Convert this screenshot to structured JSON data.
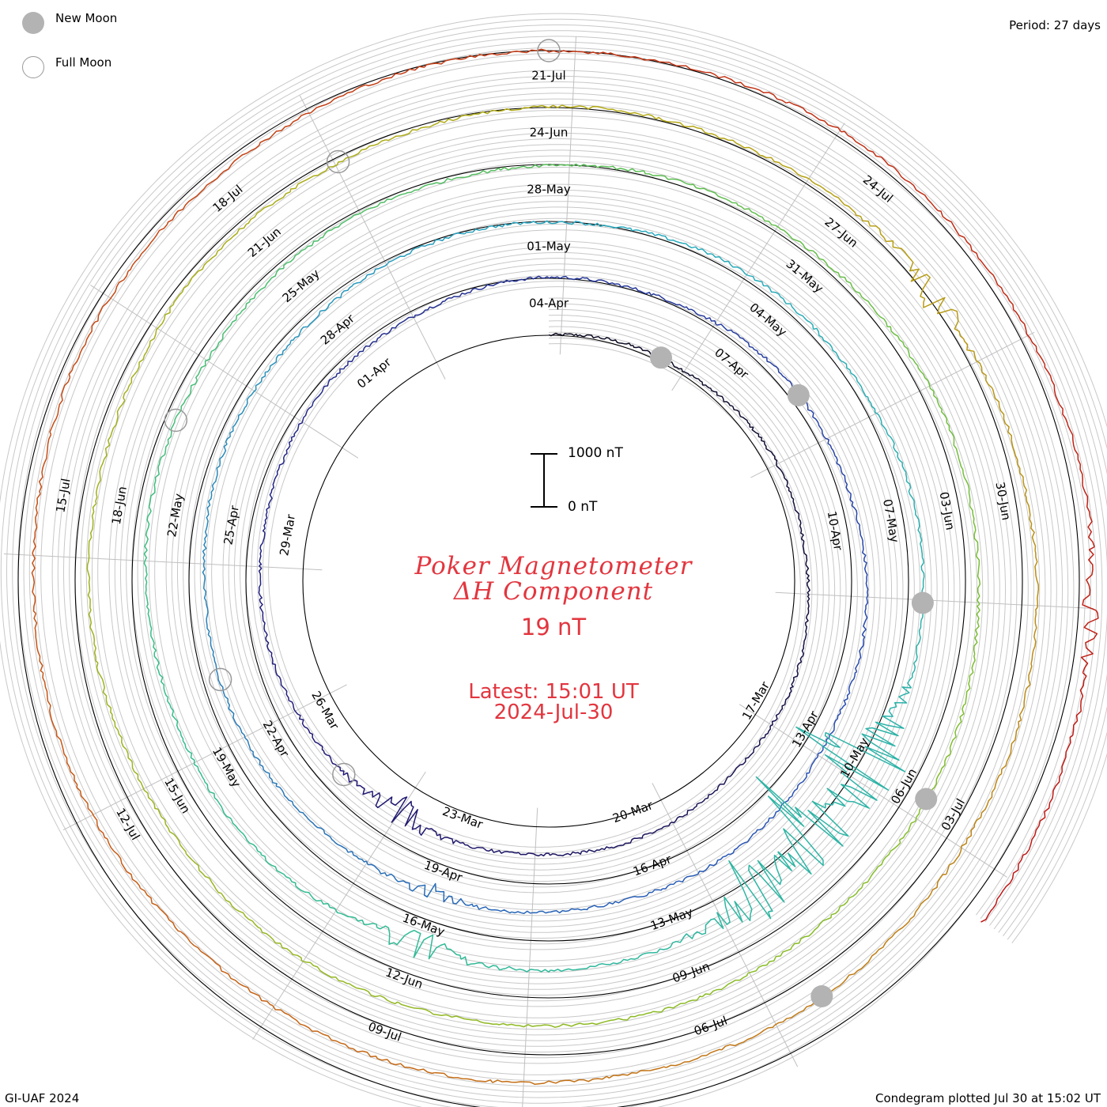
{
  "header": {
    "period": "Period: 27 days",
    "credit": "GI-UAF 2024",
    "plotted": "Condegram plotted Jul 30 at 15:02 UT"
  },
  "legend": {
    "new_moon": "New Moon",
    "full_moon": "Full Moon"
  },
  "center": {
    "title_line1": "Poker Magnetometer",
    "title_line2": "ΔH Component",
    "value": "19 nT",
    "latest_time": "Latest: 15:01 UT",
    "latest_date": "2024-Jul-30"
  },
  "scale": {
    "top_label": "1000 nT",
    "bottom_label": "0 nT"
  },
  "colors": {
    "title": "#e2363f",
    "grid": "#c8c8c8",
    "baseline": "#000000",
    "new_moon": "#b3b3b3",
    "full_moon": "#999999"
  },
  "chart_data": {
    "type": "line",
    "title": "Poker Magnetometer ΔH Component",
    "xlabel": "",
    "ylabel": "",
    "period_days": 27,
    "grid": true,
    "legend": "top-left",
    "spiral_start": "2024-03-08",
    "spiral_end": "2024-07-30",
    "date_labels": [
      {
        "label": "17-Mar",
        "color": "#000000"
      },
      {
        "label": "20-Mar",
        "color": "#000000"
      },
      {
        "label": "23-Mar",
        "color": "#000000"
      },
      {
        "label": "26-Mar",
        "color": "#000000"
      },
      {
        "label": "29-Mar",
        "color": "#000000"
      },
      {
        "label": "01-Apr",
        "color": "#000000"
      },
      {
        "label": "04-Apr",
        "color": "#000000"
      },
      {
        "label": "07-Apr",
        "color": "#000000"
      },
      {
        "label": "10-Apr",
        "color": "#000000"
      },
      {
        "label": "13-Apr",
        "color": "#000000"
      },
      {
        "label": "16-Apr",
        "color": "#000000"
      },
      {
        "label": "19-Apr",
        "color": "#000000"
      },
      {
        "label": "22-Apr",
        "color": "#000000"
      },
      {
        "label": "25-Apr",
        "color": "#000000"
      },
      {
        "label": "28-Apr",
        "color": "#000000"
      },
      {
        "label": "01-May",
        "color": "#000000"
      },
      {
        "label": "04-May",
        "color": "#000000"
      },
      {
        "label": "07-May",
        "color": "#000000"
      },
      {
        "label": "10-May",
        "color": "#000000"
      },
      {
        "label": "13-May",
        "color": "#000000"
      },
      {
        "label": "16-May",
        "color": "#000000"
      },
      {
        "label": "19-May",
        "color": "#000000"
      },
      {
        "label": "22-May",
        "color": "#000000"
      },
      {
        "label": "25-May",
        "color": "#000000"
      },
      {
        "label": "28-May",
        "color": "#000000"
      },
      {
        "label": "31-May",
        "color": "#000000"
      },
      {
        "label": "03-Jun",
        "color": "#000000"
      },
      {
        "label": "06-Jun",
        "color": "#000000"
      },
      {
        "label": "09-Jun",
        "color": "#000000"
      },
      {
        "label": "12-Jun",
        "color": "#000000"
      },
      {
        "label": "15-Jun",
        "color": "#000000"
      },
      {
        "label": "18-Jun",
        "color": "#000000"
      },
      {
        "label": "21-Jun",
        "color": "#000000"
      },
      {
        "label": "24-Jun",
        "color": "#000000"
      },
      {
        "label": "27-Jun",
        "color": "#000000"
      },
      {
        "label": "30-Jun",
        "color": "#000000"
      },
      {
        "label": "03-Jul",
        "color": "#000000"
      },
      {
        "label": "06-Jul",
        "color": "#000000"
      },
      {
        "label": "09-Jul",
        "color": "#000000"
      },
      {
        "label": "12-Jul",
        "color": "#000000"
      },
      {
        "label": "15-Jul",
        "color": "#000000"
      },
      {
        "label": "18-Jul",
        "color": "#000000"
      },
      {
        "label": "21-Jul",
        "color": "#000000"
      },
      {
        "label": "24-Jul",
        "color": "#000000"
      }
    ],
    "moons": [
      {
        "type": "new",
        "date": "2024-03-10"
      },
      {
        "type": "full",
        "date": "2024-03-25"
      },
      {
        "type": "new",
        "date": "2024-04-08"
      },
      {
        "type": "full",
        "date": "2024-04-23"
      },
      {
        "type": "new",
        "date": "2024-05-08"
      },
      {
        "type": "full",
        "date": "2024-05-23"
      },
      {
        "type": "new",
        "date": "2024-06-06"
      },
      {
        "type": "full",
        "date": "2024-06-22"
      },
      {
        "type": "new",
        "date": "2024-07-05"
      },
      {
        "type": "full",
        "date": "2024-07-21"
      }
    ],
    "disturbances": [
      {
        "date": "2024-03-24",
        "value": 520
      },
      {
        "date": "2024-04-19",
        "value": 200
      },
      {
        "date": "2024-05-10",
        "value": 1600
      },
      {
        "date": "2024-05-11",
        "value": 1300
      },
      {
        "date": "2024-05-12",
        "value": 900
      },
      {
        "date": "2024-05-16",
        "value": 450
      },
      {
        "date": "2024-06-28",
        "value": 350
      },
      {
        "date": "2024-07-28",
        "value": 280
      }
    ],
    "latest_value": 19
  }
}
